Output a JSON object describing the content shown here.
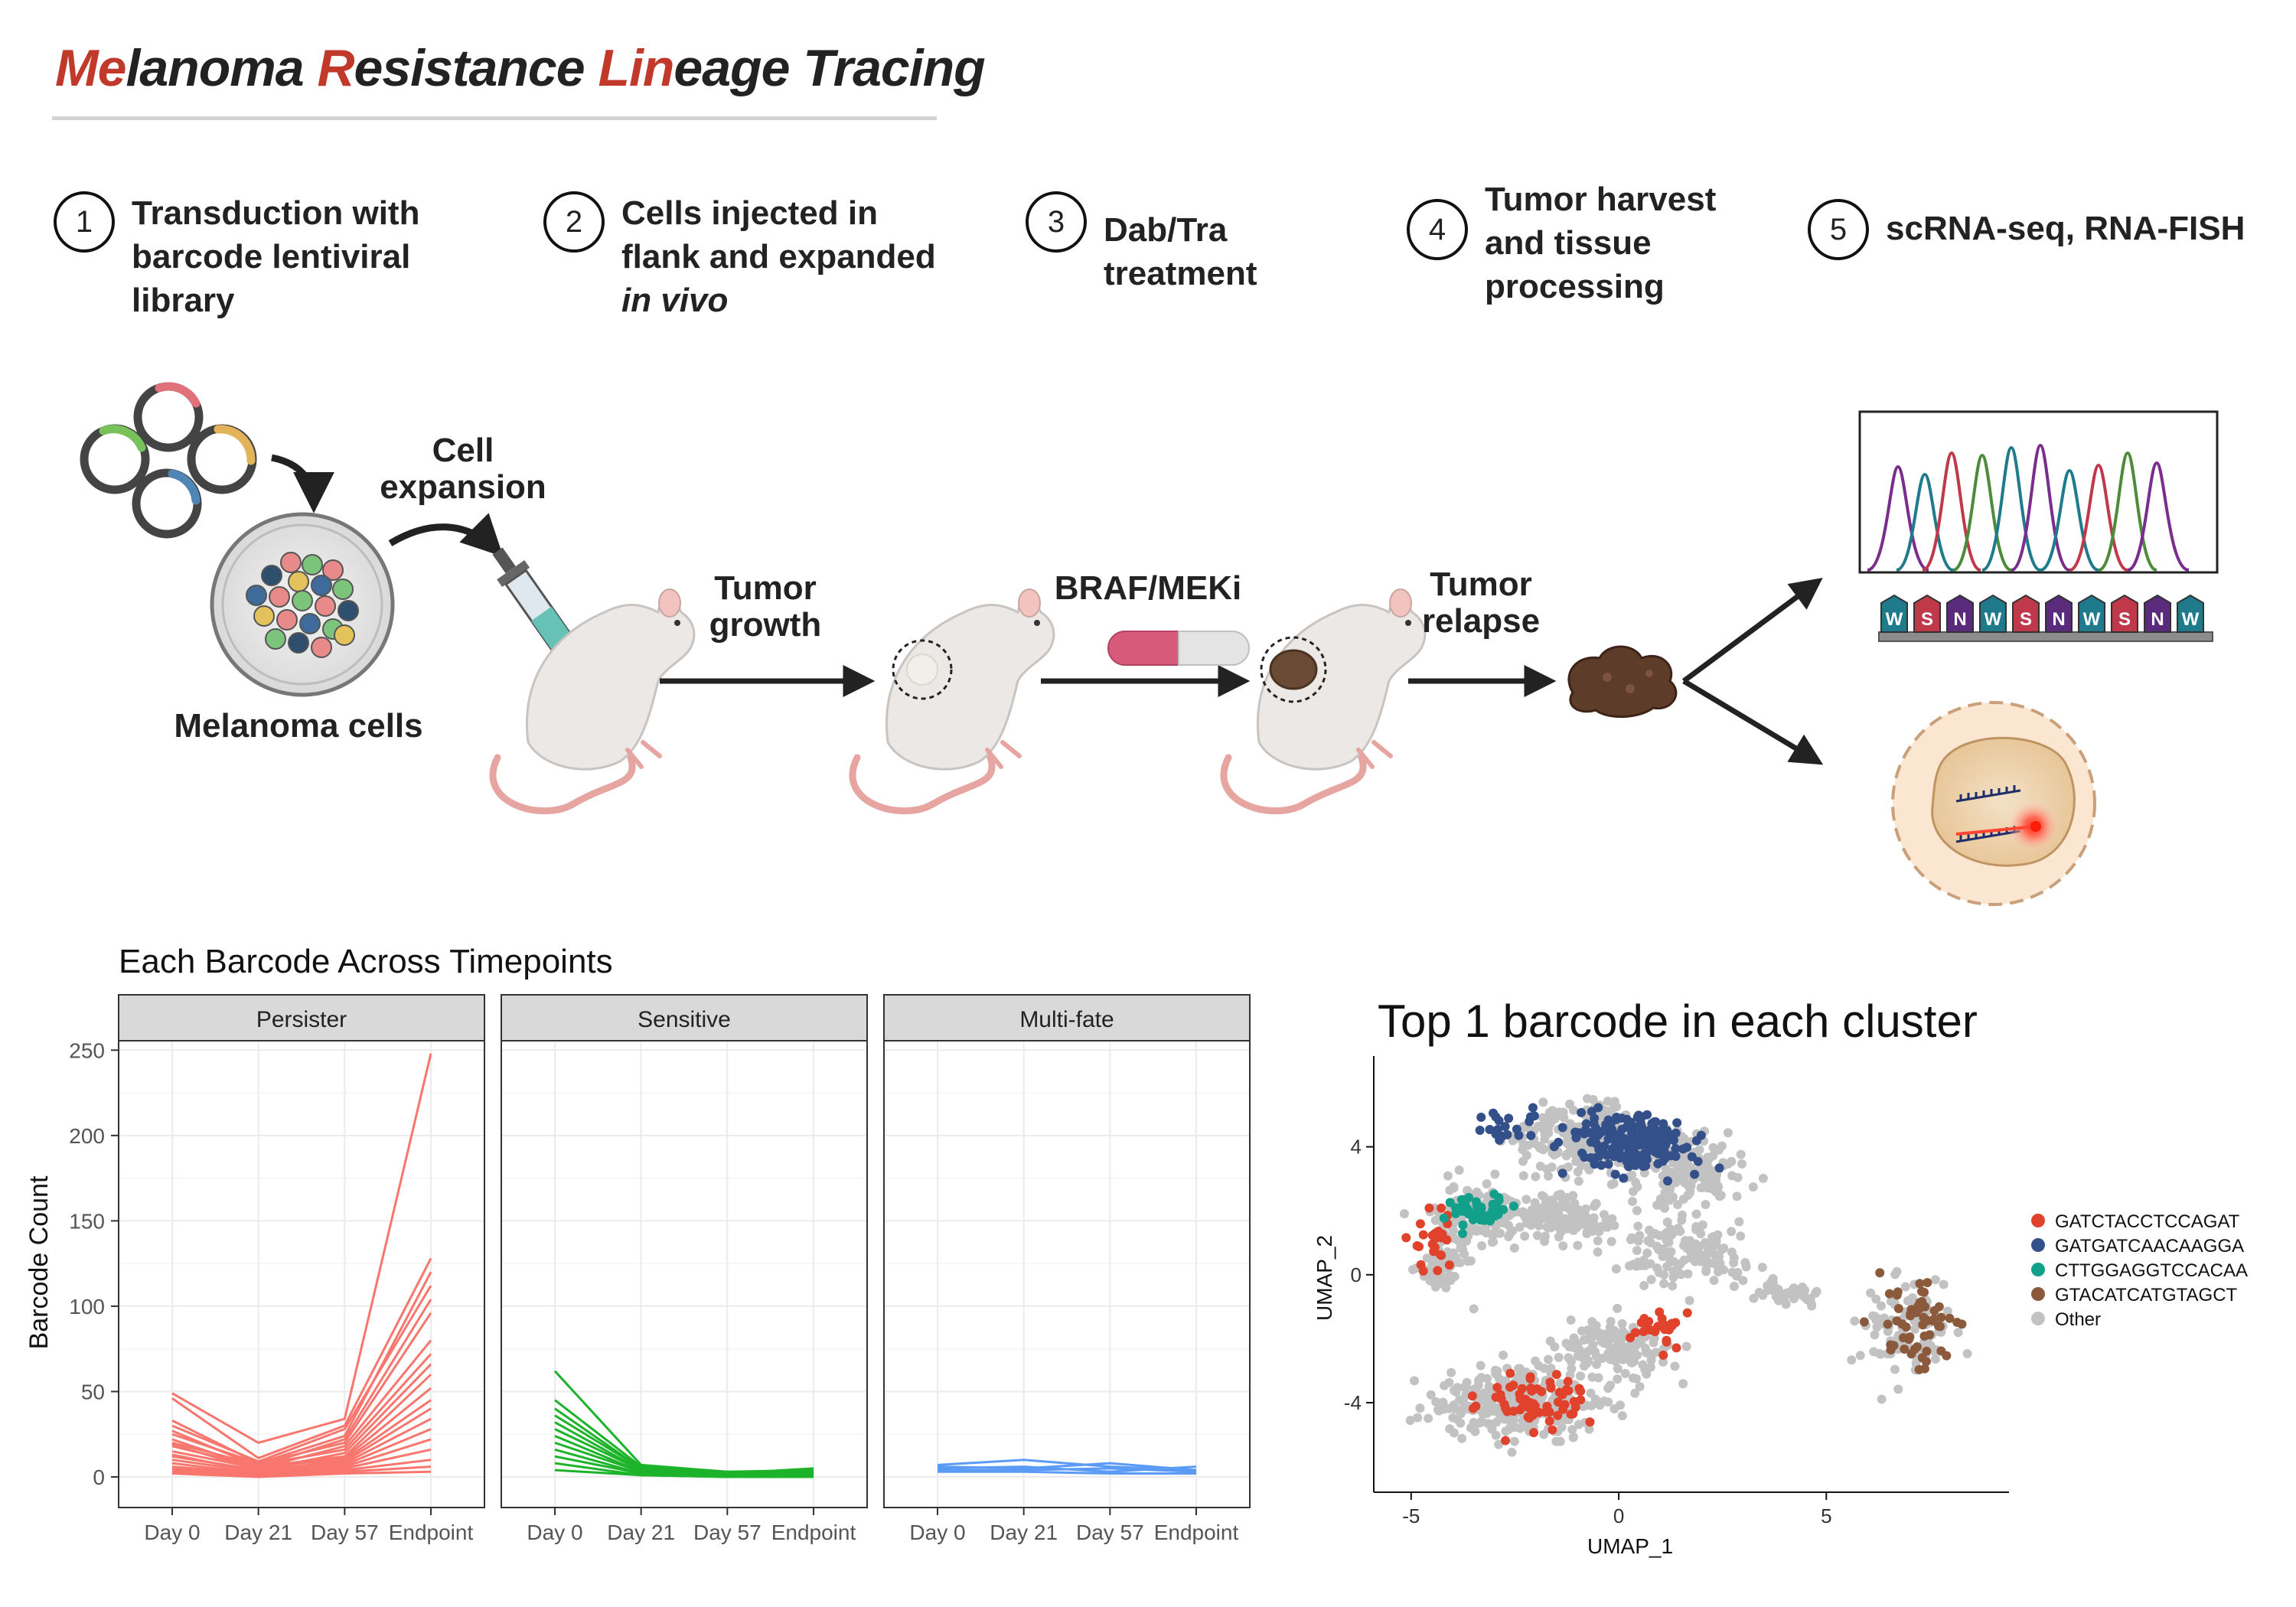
{
  "title": {
    "parts": [
      "Me",
      "lanoma ",
      "R",
      "esistance ",
      "Lin",
      "eage Tracing"
    ]
  },
  "steps": [
    {
      "num": "1",
      "lines": [
        "Transduction with",
        "barcode lentiviral",
        "library"
      ]
    },
    {
      "num": "2",
      "lines": [
        "Cells injected in",
        "flank and expanded",
        "in vivo"
      ]
    },
    {
      "num": "3",
      "lines": [
        "Dab/Tra",
        "treatment"
      ]
    },
    {
      "num": "4",
      "lines": [
        "Tumor harvest",
        "and tissue",
        "processing"
      ]
    },
    {
      "num": "5",
      "lines": [
        "scRNA-seq, RNA-FISH"
      ]
    }
  ],
  "diagram": {
    "cell_expansion": [
      "Cell",
      "expansion"
    ],
    "melanoma_cells": "Melanoma cells",
    "tumor_growth": [
      "Tumor",
      "growth"
    ],
    "braf_meki": "BRAF/MEKi",
    "tumor_relapse": [
      "Tumor",
      "relapse"
    ],
    "barcode_letters": [
      "W",
      "S",
      "N",
      "W",
      "S",
      "N",
      "W",
      "S",
      "N",
      "W"
    ]
  },
  "colors": {
    "accent": "#c0392b",
    "persister": "#f8766d",
    "sensitive": "#1db32a",
    "multifate": "#5b9bf5",
    "bc1": "#e0422c",
    "bc2": "#33508a",
    "bc3": "#12a08b",
    "bc4": "#8b5a3c",
    "other": "#c2c2c2"
  },
  "lineplot": {
    "title": "Each Barcode Across Timepoints",
    "ylabel": "Barcode Count",
    "x_ticks": [
      "Day 0",
      "Day 21",
      "Day 57",
      "Endpoint"
    ],
    "y_ticks": [
      "0",
      "50",
      "100",
      "150",
      "200",
      "250"
    ]
  },
  "umap": {
    "title": "Top 1 barcode in each cluster",
    "xlabel": "UMAP_1",
    "ylabel": "UMAP_2",
    "x_ticks": [
      "-5",
      "0",
      "5"
    ],
    "y_ticks": [
      "-4",
      "0",
      "4"
    ],
    "legend": [
      "GATCTACCTCCAGAT",
      "GATGATCAACAAGGA",
      "CTTGGAGGTCCACAA",
      "GTACATCATGTAGCT",
      "Other"
    ]
  },
  "chart_data": [
    {
      "type": "line",
      "title": "Each Barcode Across Timepoints",
      "xlabel": "",
      "ylabel": "Barcode Count",
      "ylim": [
        0,
        260
      ],
      "x": [
        "Day 0",
        "Day 21",
        "Day 57",
        "Endpoint"
      ],
      "facets": [
        {
          "name": "Persister",
          "color": "#f8766d",
          "series": [
            [
              49,
              20,
              34,
              248
            ],
            [
              46,
              11,
              30,
              128
            ],
            [
              33,
              8,
              24,
              120
            ],
            [
              30,
              9,
              28,
              112
            ],
            [
              27,
              6,
              22,
              104
            ],
            [
              25,
              8,
              20,
              96
            ],
            [
              22,
              5,
              18,
              80
            ],
            [
              20,
              7,
              16,
              72
            ],
            [
              19,
              4,
              14,
              66
            ],
            [
              18,
              6,
              12,
              60
            ],
            [
              15,
              5,
              11,
              52
            ],
            [
              13,
              3,
              10,
              45
            ],
            [
              12,
              4,
              9,
              40
            ],
            [
              10,
              3,
              8,
              34
            ],
            [
              8,
              2,
              7,
              28
            ],
            [
              6,
              2,
              6,
              22
            ],
            [
              5,
              1,
              5,
              16
            ],
            [
              4,
              1,
              4,
              10
            ],
            [
              3,
              1,
              3,
              6
            ],
            [
              2,
              0,
              2,
              3
            ]
          ]
        },
        {
          "name": "Sensitive",
          "color": "#1db32a",
          "series": [
            [
              62,
              7,
              3,
              4
            ],
            [
              45,
              6,
              2,
              5
            ],
            [
              40,
              5,
              3,
              3
            ],
            [
              36,
              5,
              2,
              2
            ],
            [
              32,
              4,
              2,
              3
            ],
            [
              28,
              4,
              1,
              2
            ],
            [
              24,
              3,
              1,
              2
            ],
            [
              20,
              3,
              1,
              1
            ],
            [
              16,
              2,
              1,
              1
            ],
            [
              12,
              2,
              0,
              1
            ],
            [
              8,
              1,
              0,
              0
            ],
            [
              4,
              1,
              0,
              0
            ]
          ]
        },
        {
          "name": "Multi-fate",
          "color": "#5b9bf5",
          "series": [
            [
              7,
              10,
              6,
              4
            ],
            [
              6,
              5,
              8,
              4
            ],
            [
              5,
              6,
              3,
              6
            ],
            [
              4,
              4,
              5,
              3
            ],
            [
              3,
              3,
              2,
              2
            ]
          ]
        }
      ]
    },
    {
      "type": "scatter",
      "title": "Top 1 barcode in each cluster",
      "xlabel": "UMAP_1",
      "ylabel": "UMAP_2",
      "xlim": [
        -5.9,
        9.4
      ],
      "ylim": [
        -6.8,
        6.6
      ],
      "series": [
        {
          "name": "GATCTACCTCCAGAT",
          "color": "#e0422c",
          "n": 120
        },
        {
          "name": "GATGATCAACAAGGA",
          "color": "#33508a",
          "n": 190
        },
        {
          "name": "CTTGGAGGTCCACAA",
          "color": "#12a08b",
          "n": 45
        },
        {
          "name": "GTACATCATGTAGCT",
          "color": "#8b5a3c",
          "n": 55
        },
        {
          "name": "Other",
          "color": "#c2c2c2",
          "n": 1400
        }
      ]
    }
  ]
}
